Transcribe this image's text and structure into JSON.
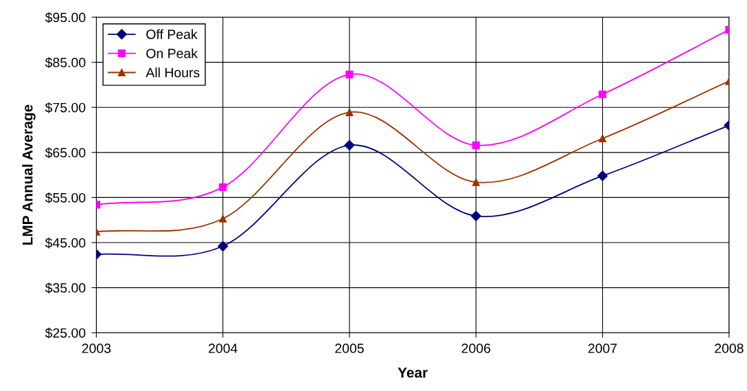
{
  "chart_data": {
    "type": "line",
    "xlabel": "Year",
    "ylabel": "LMP Annual Average",
    "x": [
      2003,
      2004,
      2005,
      2006,
      2007,
      2008
    ],
    "series": [
      {
        "name": "Off Peak",
        "color": "#000080",
        "marker": "diamond",
        "values": [
          42.4,
          44.2,
          66.6,
          50.9,
          59.8,
          71.0
        ]
      },
      {
        "name": "On Peak",
        "color": "#ff00ff",
        "marker": "square",
        "values": [
          53.4,
          57.3,
          82.3,
          66.6,
          77.9,
          92.2
        ]
      },
      {
        "name": "All Hours",
        "color": "#993300",
        "marker": "triangle",
        "values": [
          47.4,
          50.3,
          73.9,
          58.4,
          68.1,
          80.8
        ]
      }
    ],
    "xlim": [
      2003,
      2008
    ],
    "xticks": [
      2003,
      2004,
      2005,
      2006,
      2007,
      2008
    ],
    "ylim": [
      25,
      95
    ],
    "yticks": [
      {
        "value": 25,
        "label": "$25.00"
      },
      {
        "value": 35,
        "label": "$35.00"
      },
      {
        "value": 45,
        "label": "$45.00"
      },
      {
        "value": 55,
        "label": "$55.00"
      },
      {
        "value": 65,
        "label": "$65.00"
      },
      {
        "value": 75,
        "label": "$75.00"
      },
      {
        "value": 85,
        "label": "$85.00"
      },
      {
        "value": 95,
        "label": "$95.00"
      }
    ],
    "grid": true,
    "legend": "top left",
    "line_style": "solid"
  }
}
